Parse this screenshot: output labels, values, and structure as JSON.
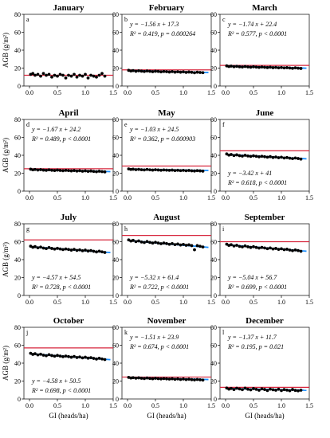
{
  "figure": {
    "ylabel": "AGB (g/m²)",
    "xlabel": "GI (heads/ha)"
  },
  "colors": {
    "points": "#000000",
    "fit_line": "#1e90ff",
    "reference_line": "#d7263d"
  },
  "chart_data": [
    {
      "type": "scatter",
      "panel": "a",
      "title": "January",
      "xlim": [
        -0.1,
        1.5
      ],
      "ylim": [
        0,
        80
      ],
      "xticks": [
        "0.0",
        "0.5",
        "1.0",
        "1.5"
      ],
      "yticks": [
        "0",
        "20",
        "40",
        "60",
        "80"
      ],
      "reference_line": 12,
      "fit": null,
      "equation": null,
      "stats": null,
      "points": {
        "x": [
          0.02,
          0.06,
          0.1,
          0.15,
          0.2,
          0.25,
          0.3,
          0.35,
          0.4,
          0.45,
          0.5,
          0.55,
          0.6,
          0.65,
          0.7,
          0.75,
          0.8,
          0.85,
          0.9,
          0.95,
          1.0,
          1.05,
          1.1,
          1.15,
          1.2,
          1.25,
          1.3,
          1.35
        ],
        "y": [
          13,
          14,
          12,
          13,
          11,
          14,
          12,
          13,
          10,
          12,
          11,
          13,
          12,
          9,
          12,
          11,
          13,
          10,
          12,
          11,
          13,
          9,
          12,
          11,
          10,
          12,
          14,
          11
        ]
      }
    },
    {
      "type": "scatter",
      "panel": "b",
      "title": "February",
      "xlim": [
        -0.1,
        1.5
      ],
      "ylim": [
        0,
        80
      ],
      "xticks": [
        "0.0",
        "0.5",
        "1.0",
        "1.5"
      ],
      "yticks": [
        "0",
        "20",
        "40",
        "60",
        "80"
      ],
      "reference_line": 18,
      "fit": {
        "slope": -1.56,
        "intercept": 17.3
      },
      "equation": "y = −1.56 x + 17.3",
      "stats": "R² = 0.419,  p = 0.000264",
      "points": {
        "x": [
          0.02,
          0.06,
          0.1,
          0.15,
          0.2,
          0.25,
          0.3,
          0.35,
          0.4,
          0.45,
          0.5,
          0.55,
          0.6,
          0.65,
          0.7,
          0.75,
          0.8,
          0.85,
          0.9,
          0.95,
          1.0,
          1.05,
          1.1,
          1.15,
          1.2,
          1.25,
          1.3,
          1.35
        ],
        "y": [
          17.5,
          16.8,
          17.2,
          16.5,
          17,
          16.6,
          16.2,
          16.8,
          16.4,
          16,
          16.5,
          16.3,
          15.8,
          16.2,
          16,
          15.6,
          16.1,
          15.5,
          15.9,
          15.4,
          15.8,
          15.2,
          15.6,
          15.3,
          14.8,
          15.4,
          15.1,
          14.9
        ]
      }
    },
    {
      "type": "scatter",
      "panel": "c",
      "title": "March",
      "xlim": [
        -0.1,
        1.5
      ],
      "ylim": [
        0,
        80
      ],
      "xticks": [
        "0.0",
        "0.5",
        "1.0",
        "1.5"
      ],
      "yticks": [
        "0",
        "20",
        "40",
        "60",
        "80"
      ],
      "reference_line": 23,
      "fit": {
        "slope": -1.74,
        "intercept": 22.4
      },
      "equation": "y = −1.74 x + 22.4",
      "stats": "R² = 0.577,  p < 0.0001",
      "points": {
        "x": [
          0.02,
          0.06,
          0.1,
          0.15,
          0.2,
          0.25,
          0.3,
          0.35,
          0.4,
          0.45,
          0.5,
          0.55,
          0.6,
          0.65,
          0.7,
          0.75,
          0.8,
          0.85,
          0.9,
          0.95,
          1.0,
          1.05,
          1.1,
          1.15,
          1.2,
          1.25,
          1.3,
          1.35
        ],
        "y": [
          22.5,
          21.8,
          22.2,
          21.6,
          22,
          21.5,
          21.2,
          21.8,
          21.3,
          21,
          21.5,
          21.1,
          20.8,
          21.2,
          20.9,
          20.6,
          21,
          20.5,
          20.8,
          20.3,
          20.7,
          20.2,
          20.5,
          20.1,
          19.8,
          20.3,
          19.9,
          19.6
        ]
      }
    },
    {
      "type": "scatter",
      "panel": "d",
      "title": "April",
      "xlim": [
        -0.1,
        1.5
      ],
      "ylim": [
        0,
        80
      ],
      "xticks": [
        "0.0",
        "0.5",
        "1.0",
        "1.5"
      ],
      "yticks": [
        "0",
        "20",
        "40",
        "60",
        "80"
      ],
      "reference_line": 25,
      "fit": {
        "slope": -1.67,
        "intercept": 24.2
      },
      "equation": "y = −1.67 x + 24.2",
      "stats": "R² = 0.489,  p < 0.0001",
      "points": {
        "x": [
          0.02,
          0.06,
          0.1,
          0.15,
          0.2,
          0.25,
          0.3,
          0.35,
          0.4,
          0.45,
          0.5,
          0.55,
          0.6,
          0.65,
          0.7,
          0.75,
          0.8,
          0.85,
          0.9,
          0.95,
          1.0,
          1.05,
          1.1,
          1.15,
          1.2,
          1.25,
          1.3,
          1.35
        ],
        "y": [
          24.5,
          23.8,
          24.2,
          23.6,
          24,
          23.5,
          23.2,
          23.8,
          23.3,
          23,
          23.5,
          23.1,
          22.8,
          23.2,
          22.9,
          22.6,
          23,
          22.4,
          22.8,
          22.2,
          22.7,
          22.1,
          22.5,
          22,
          21.7,
          22.2,
          21.8,
          21.5
        ]
      }
    },
    {
      "type": "scatter",
      "panel": "e",
      "title": "May",
      "xlim": [
        -0.1,
        1.5
      ],
      "ylim": [
        0,
        80
      ],
      "xticks": [
        "0.0",
        "0.5",
        "1.0",
        "1.5"
      ],
      "yticks": [
        "0",
        "20",
        "40",
        "60",
        "80"
      ],
      "reference_line": 28,
      "fit": {
        "slope": -1.03,
        "intercept": 24.5
      },
      "equation": "y = −1.03 x + 24.5",
      "stats": "R² = 0.362,  p = 0.000903",
      "points": {
        "x": [
          0.02,
          0.06,
          0.1,
          0.15,
          0.2,
          0.25,
          0.3,
          0.35,
          0.4,
          0.45,
          0.5,
          0.55,
          0.6,
          0.65,
          0.7,
          0.75,
          0.8,
          0.85,
          0.9,
          0.95,
          1.0,
          1.05,
          1.1,
          1.15,
          1.2,
          1.25,
          1.3,
          1.35
        ],
        "y": [
          24.8,
          24.2,
          24.5,
          24,
          24.3,
          23.9,
          23.7,
          24.2,
          23.8,
          23.5,
          23.9,
          23.6,
          23.3,
          23.7,
          23.4,
          23.2,
          23.5,
          23,
          23.3,
          22.9,
          23.2,
          22.8,
          23.1,
          22.7,
          22.5,
          22.9,
          22.6,
          22.3
        ]
      }
    },
    {
      "type": "scatter",
      "panel": "f",
      "title": "June",
      "xlim": [
        -0.1,
        1.5
      ],
      "ylim": [
        0,
        80
      ],
      "xticks": [
        "0.0",
        "0.5",
        "1.0",
        "1.5"
      ],
      "yticks": [
        "0",
        "20",
        "40",
        "60",
        "80"
      ],
      "reference_line": 45,
      "fit": {
        "slope": -3.42,
        "intercept": 41
      },
      "equation": "y = −3.42 x + 41",
      "stats": "R² = 0.618,  p < 0.0001",
      "points": {
        "x": [
          0.02,
          0.06,
          0.1,
          0.15,
          0.2,
          0.25,
          0.3,
          0.35,
          0.4,
          0.45,
          0.5,
          0.55,
          0.6,
          0.65,
          0.7,
          0.75,
          0.8,
          0.85,
          0.9,
          0.95,
          1.0,
          1.05,
          1.1,
          1.15,
          1.2,
          1.25,
          1.3,
          1.35
        ],
        "y": [
          41.5,
          40.2,
          40.9,
          39.8,
          40.5,
          39.6,
          39.1,
          40,
          39.2,
          38.8,
          39.4,
          38.9,
          38.3,
          38.9,
          38.4,
          37.9,
          38.5,
          37.6,
          38.1,
          37.3,
          37.9,
          37,
          37.5,
          36.8,
          36.3,
          37,
          36.4,
          35.8
        ]
      }
    },
    {
      "type": "scatter",
      "panel": "g",
      "title": "July",
      "xlim": [
        -0.1,
        1.5
      ],
      "ylim": [
        0,
        80
      ],
      "xticks": [
        "0.0",
        "0.5",
        "1.0",
        "1.5"
      ],
      "yticks": [
        "0",
        "20",
        "40",
        "60",
        "80"
      ],
      "reference_line": 62,
      "fit": {
        "slope": -4.57,
        "intercept": 54.5
      },
      "equation": "y = −4.57 x + 54.5",
      "stats": "R² = 0.728,  p < 0.0001",
      "points": {
        "x": [
          0.02,
          0.06,
          0.1,
          0.15,
          0.2,
          0.25,
          0.3,
          0.35,
          0.4,
          0.45,
          0.5,
          0.55,
          0.6,
          0.65,
          0.7,
          0.75,
          0.8,
          0.85,
          0.9,
          0.95,
          1.0,
          1.05,
          1.1,
          1.15,
          1.2,
          1.25,
          1.3,
          1.35
        ],
        "y": [
          55,
          53.8,
          54.5,
          53.2,
          54,
          52.9,
          52.3,
          53.4,
          52.5,
          51.8,
          52.6,
          51.9,
          51.2,
          51.9,
          51.3,
          50.6,
          51.4,
          50.3,
          50.9,
          49.9,
          50.6,
          49.6,
          50.1,
          49.3,
          48.6,
          49.4,
          48.7,
          48
        ]
      }
    },
    {
      "type": "scatter",
      "panel": "h",
      "title": "August",
      "xlim": [
        -0.1,
        1.5
      ],
      "ylim": [
        0,
        80
      ],
      "xticks": [
        "0.0",
        "0.5",
        "1.0",
        "1.5"
      ],
      "yticks": [
        "0",
        "20",
        "40",
        "60",
        "80"
      ],
      "reference_line": 67,
      "fit": {
        "slope": -5.32,
        "intercept": 61.4
      },
      "equation": "y = −5.32 x + 61.4",
      "stats": "R² = 0.722,  p < 0.0001",
      "points": {
        "x": [
          0.02,
          0.06,
          0.1,
          0.15,
          0.2,
          0.25,
          0.3,
          0.35,
          0.4,
          0.45,
          0.5,
          0.55,
          0.6,
          0.65,
          0.7,
          0.75,
          0.8,
          0.85,
          0.9,
          0.95,
          1.0,
          1.05,
          1.1,
          1.15,
          1.2,
          1.25,
          1.3,
          1.35
        ],
        "y": [
          62,
          60.8,
          61.5,
          60.1,
          60.9,
          59.7,
          59.1,
          60.2,
          59.2,
          58.5,
          59.3,
          58.5,
          57.8,
          58.5,
          57.9,
          57.1,
          57.9,
          56.8,
          57.4,
          56.3,
          57,
          56,
          56.5,
          55.6,
          51,
          55.6,
          54.9,
          54.1
        ]
      }
    },
    {
      "type": "scatter",
      "panel": "i",
      "title": "September",
      "xlim": [
        -0.1,
        1.5
      ],
      "ylim": [
        0,
        80
      ],
      "xticks": [
        "0.0",
        "0.5",
        "1.0",
        "1.5"
      ],
      "yticks": [
        "0",
        "20",
        "40",
        "60",
        "80"
      ],
      "reference_line": 60,
      "fit": {
        "slope": -5.04,
        "intercept": 56.7
      },
      "equation": "y = −5.04 x + 56.7",
      "stats": "R² = 0.699,  p < 0.0001",
      "points": {
        "x": [
          0.02,
          0.06,
          0.1,
          0.15,
          0.2,
          0.25,
          0.3,
          0.35,
          0.4,
          0.45,
          0.5,
          0.55,
          0.6,
          0.65,
          0.7,
          0.75,
          0.8,
          0.85,
          0.9,
          0.95,
          1.0,
          1.05,
          1.1,
          1.15,
          1.2,
          1.25,
          1.3,
          1.35
        ],
        "y": [
          57.2,
          55.9,
          56.6,
          55.2,
          56,
          54.8,
          54.2,
          55.3,
          54.3,
          53.6,
          54.4,
          53.6,
          52.9,
          53.6,
          53,
          52.2,
          53,
          51.9,
          52.5,
          51.4,
          52.1,
          51.1,
          51.6,
          50.7,
          50,
          50.8,
          50.1,
          49.3
        ]
      }
    },
    {
      "type": "scatter",
      "panel": "j",
      "title": "October",
      "xlim": [
        -0.1,
        1.5
      ],
      "ylim": [
        0,
        80
      ],
      "xticks": [
        "0.0",
        "0.5",
        "1.0",
        "1.5"
      ],
      "yticks": [
        "0",
        "20",
        "40",
        "60",
        "80"
      ],
      "reference_line": 57,
      "fit": {
        "slope": -4.58,
        "intercept": 50.5
      },
      "equation": "y = −4.58 x + 50.5",
      "stats": "R² = 0.698,  p < 0.0001",
      "points": {
        "x": [
          0.02,
          0.06,
          0.1,
          0.15,
          0.2,
          0.25,
          0.3,
          0.35,
          0.4,
          0.45,
          0.5,
          0.55,
          0.6,
          0.65,
          0.7,
          0.75,
          0.8,
          0.85,
          0.9,
          0.95,
          1.0,
          1.05,
          1.1,
          1.15,
          1.2,
          1.25,
          1.3,
          1.35
        ],
        "y": [
          51,
          49.8,
          50.5,
          49.2,
          50,
          48.9,
          48.3,
          49.4,
          48.5,
          47.8,
          48.6,
          47.9,
          47.2,
          47.9,
          47.3,
          46.6,
          47.4,
          46.3,
          46.9,
          45.9,
          46.6,
          45.6,
          46.1,
          45.3,
          44.6,
          45.4,
          44.7,
          44
        ]
      }
    },
    {
      "type": "scatter",
      "panel": "k",
      "title": "November",
      "xlim": [
        -0.1,
        1.5
      ],
      "ylim": [
        0,
        80
      ],
      "xticks": [
        "0.0",
        "0.5",
        "1.0",
        "1.5"
      ],
      "yticks": [
        "0",
        "20",
        "40",
        "60",
        "80"
      ],
      "reference_line": 24.5,
      "fit": {
        "slope": -1.51,
        "intercept": 23.9
      },
      "equation": "y = −1.51 x + 23.9",
      "stats": "R² = 0.674,  p < 0.0001",
      "points": {
        "x": [
          0.02,
          0.06,
          0.1,
          0.15,
          0.2,
          0.25,
          0.3,
          0.35,
          0.4,
          0.45,
          0.5,
          0.55,
          0.6,
          0.65,
          0.7,
          0.75,
          0.8,
          0.85,
          0.9,
          0.95,
          1.0,
          1.05,
          1.1,
          1.15,
          1.2,
          1.25,
          1.3,
          1.35
        ],
        "y": [
          24.1,
          23.4,
          23.8,
          23.2,
          23.6,
          23.1,
          22.8,
          23.4,
          22.9,
          22.6,
          23.1,
          22.7,
          22.4,
          22.8,
          22.5,
          22.2,
          22.6,
          22,
          22.4,
          21.8,
          22.3,
          21.7,
          22.1,
          21.6,
          21.3,
          21.8,
          21.4,
          21.1
        ]
      }
    },
    {
      "type": "scatter",
      "panel": "l",
      "title": "December",
      "xlim": [
        -0.1,
        1.5
      ],
      "ylim": [
        0,
        80
      ],
      "xticks": [
        "0.0",
        "0.5",
        "1.0",
        "1.5"
      ],
      "yticks": [
        "0",
        "20",
        "40",
        "60",
        "80"
      ],
      "reference_line": 13,
      "fit": {
        "slope": -1.37,
        "intercept": 11.7
      },
      "equation": "y = −1.37 x + 11.7",
      "stats": "R² = 0.195,  p = 0.021",
      "points": {
        "x": [
          0.02,
          0.06,
          0.1,
          0.15,
          0.2,
          0.25,
          0.3,
          0.35,
          0.4,
          0.45,
          0.5,
          0.55,
          0.6,
          0.65,
          0.7,
          0.75,
          0.8,
          0.85,
          0.9,
          0.95,
          1.0,
          1.05,
          1.1,
          1.15,
          1.2,
          1.25,
          1.3,
          1.35
        ],
        "y": [
          12.2,
          11,
          11.8,
          10.6,
          12,
          11.2,
          10.4,
          12.1,
          10.9,
          10.2,
          11.6,
          10.8,
          9.8,
          11.3,
          10.6,
          9.5,
          11,
          10.3,
          9.8,
          10.9,
          9.4,
          10.5,
          9.9,
          9.2,
          10.6,
          9.6,
          9.1,
          9.8
        ]
      }
    }
  ]
}
